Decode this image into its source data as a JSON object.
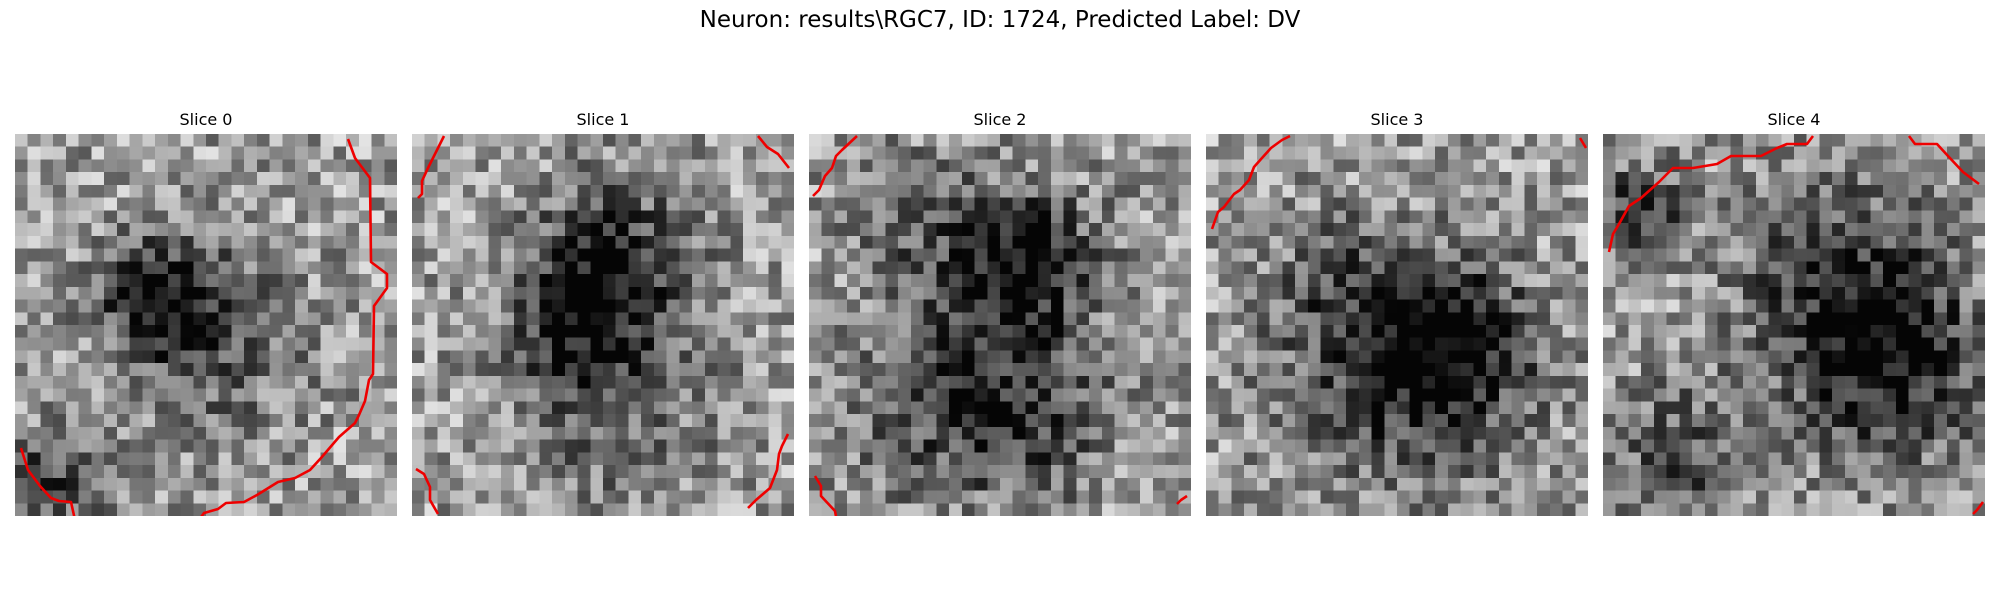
{
  "figure": {
    "title": "Neuron: results\\RGC7, ID: 1724, Predicted Label: DV"
  },
  "panels": [
    {
      "title": "Slice 0",
      "image": "noisy grayscale cell patch with red contour along right and bottom",
      "contour_color": "#ee0000"
    },
    {
      "title": "Slice 1",
      "image": "noisy grayscale cell patch with red contour fragments at corners",
      "contour_color": "#ee0000"
    },
    {
      "title": "Slice 2",
      "image": "noisy grayscale cell patch with red contour fragments at corners",
      "contour_color": "#ee0000"
    },
    {
      "title": "Slice 3",
      "image": "noisy grayscale cell patch with red contour at top-left",
      "contour_color": "#ee0000"
    },
    {
      "title": "Slice 4",
      "image": "noisy grayscale cell patch with red contour across top",
      "contour_color": "#ee0000"
    }
  ]
}
